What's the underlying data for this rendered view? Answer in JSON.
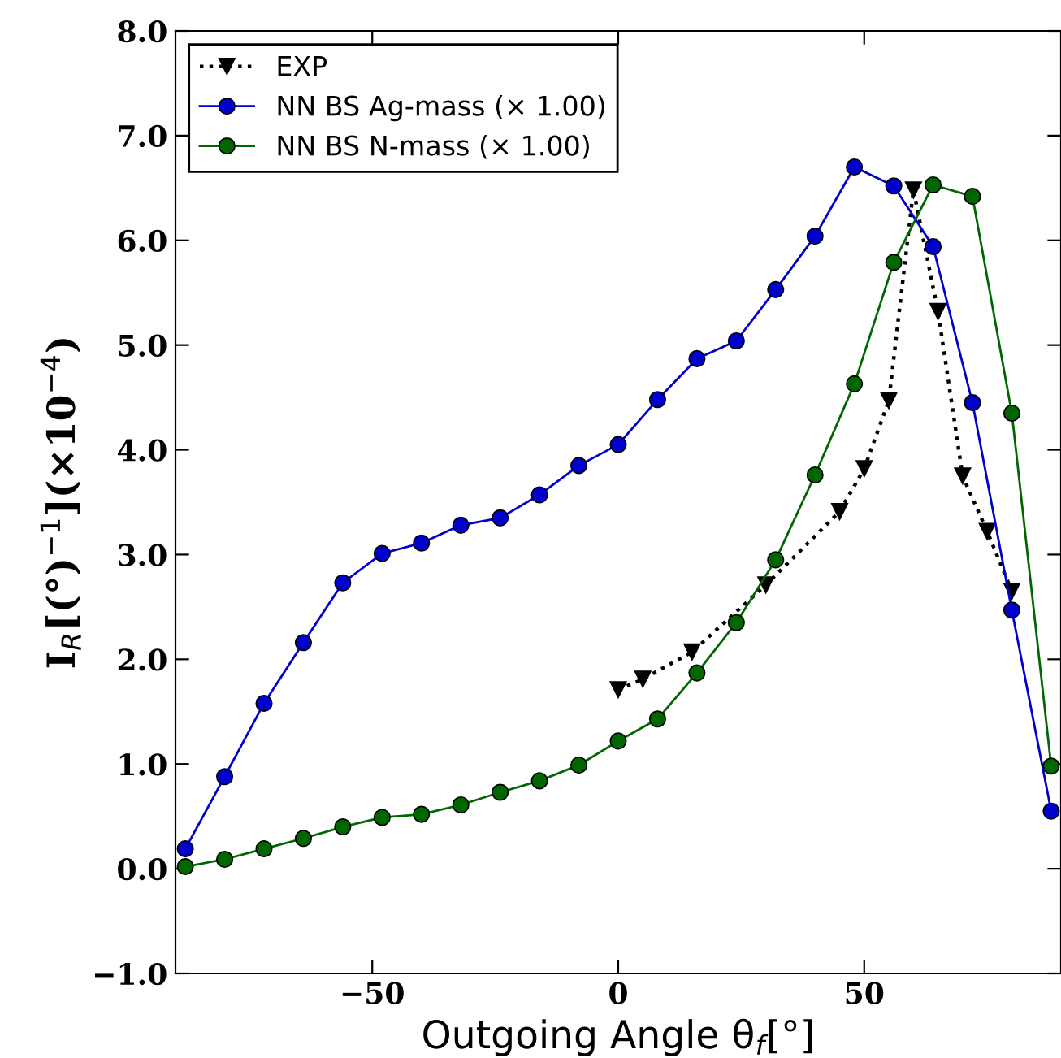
{
  "chart_data": {
    "type": "line",
    "xlabel": "Outgoing Angle θ$_{f}$[°]",
    "ylabel": "I$_{R}$[(°)$^{−1}$](×10$^{−4}$)",
    "xlim": [
      -90,
      90
    ],
    "ylim": [
      -1,
      8
    ],
    "xticks": [
      {
        "value": -50,
        "label": "−50"
      },
      0,
      50
    ],
    "yticks": [
      {
        "value": -1,
        "label": "−1.0"
      },
      {
        "value": 0,
        "label": "0.0"
      },
      {
        "value": 1,
        "label": "1.0"
      },
      {
        "value": 2,
        "label": "2.0"
      },
      {
        "value": 3,
        "label": "3.0"
      },
      {
        "value": 4,
        "label": "4.0"
      },
      {
        "value": 5,
        "label": "5.0"
      },
      {
        "value": 6,
        "label": "6.0"
      },
      {
        "value": 7,
        "label": "7.0"
      },
      {
        "value": 8,
        "label": "8.0"
      }
    ],
    "grid": false,
    "legend": "top left",
    "series": [
      {
        "name": "EXP",
        "color": "#000000",
        "marker": "triangle",
        "line_style": "dotted",
        "x": [
          0,
          5,
          15,
          30,
          45,
          50,
          55,
          60,
          65,
          70,
          75,
          80
        ],
        "values": [
          1.71,
          1.81,
          2.07,
          2.71,
          3.41,
          3.82,
          4.47,
          6.48,
          5.32,
          3.75,
          3.22,
          2.65
        ]
      },
      {
        "name": "NN BS Ag-mass (× 1.00)",
        "color": "#0000cc",
        "marker": "circle",
        "line_style": "solid",
        "x": [
          -88,
          -80,
          -72,
          -64,
          -56,
          -48,
          -40,
          -32,
          -24,
          -16,
          -8,
          0,
          8,
          16,
          24,
          32,
          40,
          48,
          56,
          64,
          72,
          80,
          88
        ],
        "values": [
          0.19,
          0.88,
          1.58,
          2.16,
          2.73,
          3.01,
          3.11,
          3.28,
          3.35,
          3.57,
          3.85,
          4.05,
          4.48,
          4.87,
          5.04,
          5.53,
          6.04,
          6.7,
          6.52,
          5.94,
          4.45,
          2.47,
          0.55
        ]
      },
      {
        "name": "NN BS N-mass (× 1.00)",
        "color": "#006600",
        "marker": "circle",
        "line_style": "solid",
        "x": [
          -88,
          -80,
          -72,
          -64,
          -56,
          -48,
          -40,
          -32,
          -24,
          -16,
          -8,
          0,
          8,
          16,
          24,
          32,
          40,
          48,
          56,
          64,
          72,
          80,
          88
        ],
        "values": [
          0.02,
          0.09,
          0.19,
          0.29,
          0.4,
          0.49,
          0.52,
          0.61,
          0.73,
          0.84,
          0.99,
          1.22,
          1.43,
          1.87,
          2.35,
          2.95,
          3.76,
          4.63,
          5.79,
          6.53,
          6.42,
          4.35,
          0.98
        ]
      }
    ]
  }
}
